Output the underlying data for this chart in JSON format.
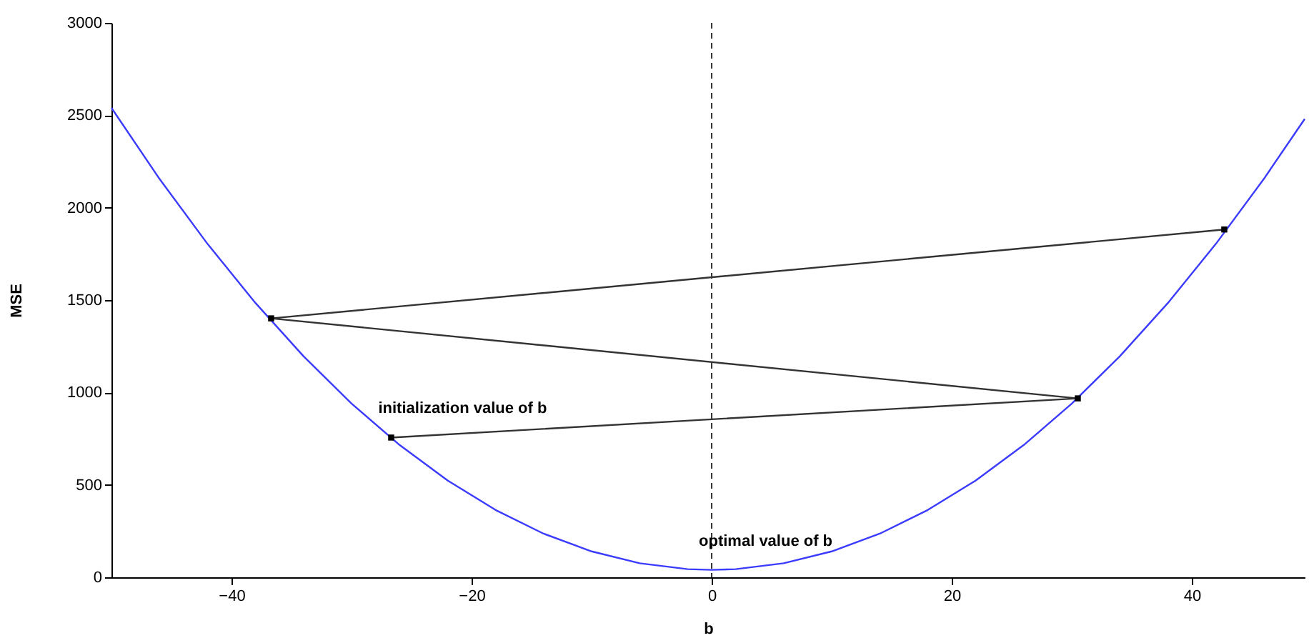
{
  "chart_data": {
    "type": "line",
    "xlabel": "b",
    "ylabel": "MSE",
    "xlim": [
      -50,
      49.4
    ],
    "xticks": [
      -40,
      -20,
      0,
      20,
      40
    ],
    "ylim": [
      0,
      3000
    ],
    "yticks": [
      0,
      500,
      1000,
      1500,
      2000,
      2500,
      3000
    ],
    "grid": false,
    "series": [
      {
        "color": "#3b3bff",
        "marker": "none",
        "x": [
          -50,
          -46,
          -42,
          -38,
          -34,
          -30,
          -26,
          -22,
          -18,
          -14,
          -10,
          -6,
          -2,
          0,
          2,
          6,
          10,
          14,
          18,
          22,
          26,
          30,
          34,
          38,
          42,
          46,
          49.4
        ],
        "values": [
          2540,
          2156,
          1804,
          1484,
          1196,
          940,
          716,
          524,
          364,
          236,
          140,
          76,
          44,
          40,
          44,
          76,
          140,
          236,
          364,
          524,
          716,
          940,
          1196,
          1484,
          1804,
          2156,
          2480
        ]
      },
      {
        "color": "#333333",
        "marker": "square",
        "x": [
          -26.7,
          30.5,
          -36.7,
          42.7
        ],
        "values": [
          756,
          968,
          1401,
          1882
        ]
      }
    ],
    "ref_lines": [
      {
        "axis": "x",
        "value": 0,
        "line_style": "dashed",
        "color": "#333333"
      }
    ],
    "annotations": [
      {
        "text": "initialization value of b",
        "x": -26.7,
        "y": 756
      },
      {
        "text": "optimal value of b",
        "x": 0,
        "y": 40
      }
    ]
  }
}
